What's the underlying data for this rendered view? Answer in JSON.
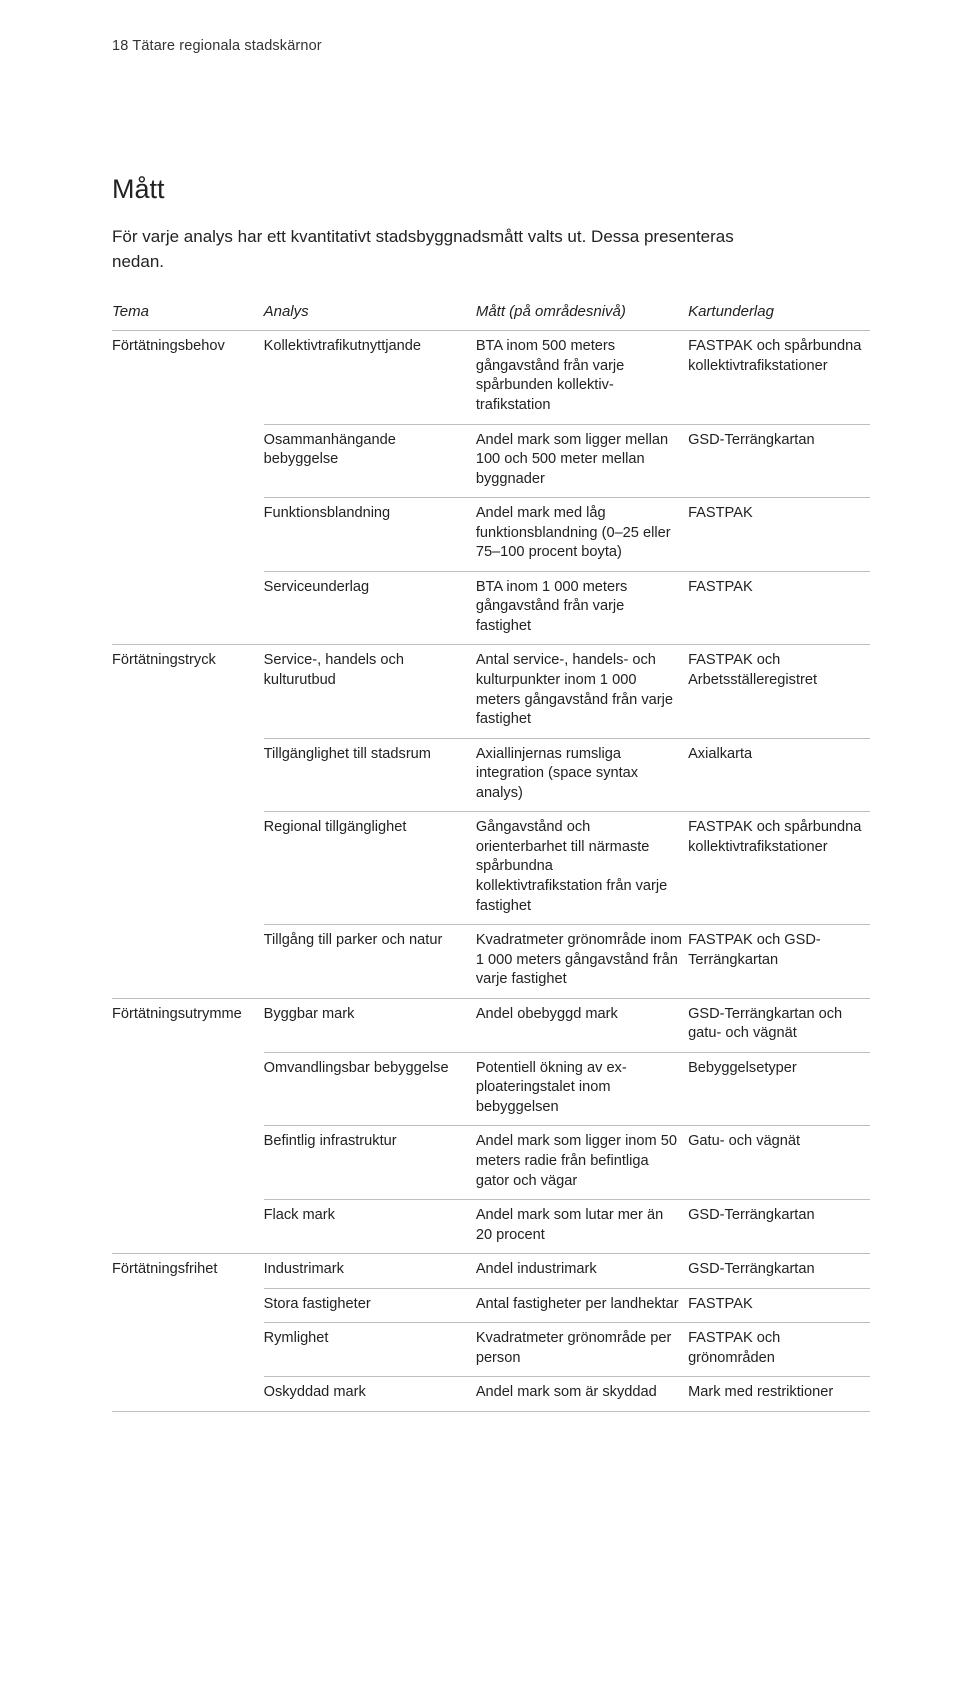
{
  "running_head": "18  Tätare regionala stadskärnor",
  "section_heading": "Mått",
  "intro": "För varje analys har ett kvantitativt stadsbyggnadsmått valts ut. Dessa presenteras nedan.",
  "columns": {
    "tema": "Tema",
    "analys": "Analys",
    "matt": "Mått (på områdesnivå)",
    "kart": "Kartunderlag"
  },
  "groups": [
    {
      "tema": "Förtätningsbehov",
      "rows": [
        {
          "analys": "Kollektivtrafikutnyttjande",
          "matt": "BTA inom 500 meters gångavstånd från varje spårbunden kollektiv­trafikstation",
          "kart": "FASTPAK och spår­bundna kollektiv­trafikstationer"
        },
        {
          "analys": "Osammanhängande bebyggelse",
          "matt": "Andel mark som ligger mellan 100 och 500 me­ter mellan byggnader",
          "kart": "GSD-Terrängkartan"
        },
        {
          "analys": "Funktionsblandning",
          "matt": "Andel mark med låg funktionsblandning (0–25 eller 75–100 procent boyta)",
          "kart": "FASTPAK"
        },
        {
          "analys": "Serviceunderlag",
          "matt": "BTA inom 1 000 meters gångavstånd från varje fastighet",
          "kart": "FASTPAK"
        }
      ]
    },
    {
      "tema": "Förtätningstryck",
      "rows": [
        {
          "analys": "Service-, handels och kulturutbud",
          "matt": "Antal service-, handels- och kulturpunkter inom 1 000 meters gångavstånd från varje fastighet",
          "kart": "FASTPAK och Arbetsställeregistret"
        },
        {
          "analys": "Tillgänglighet till stadsrum",
          "matt": "Axiallinjernas rumsliga integration (space syn­tax analys)",
          "kart": "Axialkarta"
        },
        {
          "analys": "Regional tillgänglighet",
          "matt": "Gångavstånd och orienterbarhet till närmaste spårbundna kollektivtrafikstation från varje fastighet",
          "kart": "FASTPAK och spårbundna kollek­tivtrafikstationer"
        },
        {
          "analys": "Tillgång till parker och natur",
          "matt": "Kvadratmeter grönom­råde inom 1 000 meters gångavstånd från varje fastighet",
          "kart": "FASTPAK och GSD-Terrängkartan"
        }
      ]
    },
    {
      "tema": "Förtätnings­utrymme",
      "rows": [
        {
          "analys": "Byggbar mark",
          "matt": "Andel obebyggd mark",
          "kart": "GSD-Terrängkartan och gatu- och vägnät"
        },
        {
          "analys": "Omvandlingsbar bebyggelse",
          "matt": "Potentiell ökning av ex­ploateringstalet inom bebyggelsen",
          "kart": "Bebyggelsetyper"
        },
        {
          "analys": "Befintlig infrastruktur",
          "matt": "Andel mark som ligger inom 50 meters radie från befintliga gator och vägar",
          "kart": "Gatu- och vägnät"
        },
        {
          "analys": "Flack mark",
          "matt": "Andel mark som lutar mer än 20 procent",
          "kart": "GSD-Terrängkartan"
        }
      ]
    },
    {
      "tema": "Förtätningsfrihet",
      "rows": [
        {
          "analys": "Industrimark",
          "matt": "Andel industrimark",
          "kart": "GSD-Terrängkartan"
        },
        {
          "analys": "Stora fastigheter",
          "matt": "Antal fastigheter per landhektar",
          "kart": "FASTPAK"
        },
        {
          "analys": "Rymlighet",
          "matt": "Kvadratmeter grön­område per person",
          "kart": "FASTPAK och grönområden"
        },
        {
          "analys": "Oskyddad mark",
          "matt": "Andel mark som är skyddad",
          "kart": "Mark med restrik­tioner"
        }
      ]
    }
  ]
}
